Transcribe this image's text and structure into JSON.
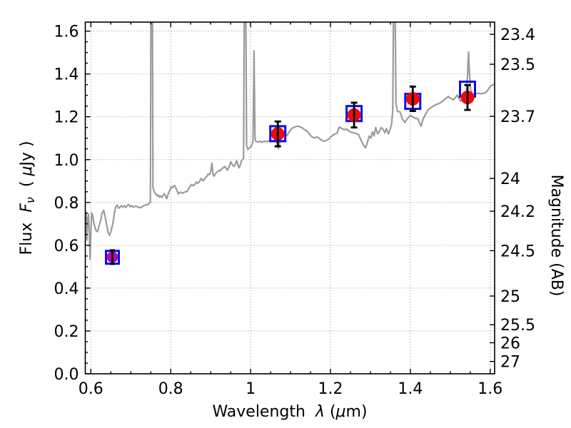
{
  "chart_data": {
    "type": "line+scatter",
    "title": "",
    "xlabel_parts": [
      {
        "t": "Wavelength  ",
        "i": false
      },
      {
        "t": "λ",
        "i": true
      },
      {
        "t": " (",
        "i": false
      },
      {
        "t": "μ",
        "i": true
      },
      {
        "t": "m)",
        "i": false
      }
    ],
    "ylabel_left_parts": [
      {
        "t": "Flux  ",
        "i": false
      },
      {
        "t": "F",
        "i": true
      },
      {
        "t": "ν",
        "i": true,
        "s": true
      },
      {
        "t": "  ( ",
        "i": false
      },
      {
        "t": "μ",
        "i": true
      },
      {
        "t": "Jy )",
        "i": false
      }
    ],
    "ylabel_right": "Magnitude (AB)",
    "x_axis": {
      "lim": [
        0.586,
        1.611
      ],
      "major_ticks": [
        {
          "value": 0.6,
          "label": "0.6"
        },
        {
          "value": 0.8,
          "label": "0.8"
        },
        {
          "value": 1.0,
          "label": "1"
        },
        {
          "value": 1.2,
          "label": "1.2"
        },
        {
          "value": 1.4,
          "label": "1.4"
        },
        {
          "value": 1.6,
          "label": "1.6"
        }
      ],
      "minor_step": 0.05
    },
    "y_axis_left": {
      "lim": [
        0.0,
        1.642
      ],
      "major_ticks": [
        {
          "value": 0.0,
          "label": "0.0"
        },
        {
          "value": 0.2,
          "label": "0.2"
        },
        {
          "value": 0.4,
          "label": "0.4"
        },
        {
          "value": 0.6,
          "label": "0.6"
        },
        {
          "value": 0.8,
          "label": "0.8"
        },
        {
          "value": 1.0,
          "label": "1.0"
        },
        {
          "value": 1.2,
          "label": "1.2"
        },
        {
          "value": 1.4,
          "label": "1.4"
        },
        {
          "value": 1.6,
          "label": "1.6"
        }
      ],
      "minor_step": 0.05
    },
    "y_axis_right": {
      "zero_point_note": "AB magnitude axis, m = 23.9 - 2.5 log10(F/uJy)",
      "ticks": [
        {
          "label": "23.4",
          "flux": 1.585
        },
        {
          "label": "23.5",
          "flux": 1.445
        },
        {
          "label": "23.7",
          "flux": 1.202
        },
        {
          "label": "24",
          "flux": 0.912
        },
        {
          "label": "24.2",
          "flux": 0.759
        },
        {
          "label": "24.5",
          "flux": 0.575
        },
        {
          "label": "25",
          "flux": 0.363
        },
        {
          "label": "25.5",
          "flux": 0.229
        },
        {
          "label": "26",
          "flux": 0.145
        },
        {
          "label": "27",
          "flux": 0.0575
        }
      ]
    },
    "grid": {
      "on": true,
      "style": "dotted"
    },
    "colors": {
      "background": "#ffffff",
      "frame": "#000000",
      "grid": "#8c8c8c",
      "spectrum": "#9b9b9b",
      "square": "#0b0bee",
      "circle_red": "#f20a0a",
      "circle_magenta": "#b40ab4",
      "error_bar": "#000000"
    },
    "spectrum_points": [
      [
        0.586,
        0.7
      ],
      [
        0.5875,
        0.755
      ],
      [
        0.589,
        0.73
      ],
      [
        0.59,
        0.624
      ],
      [
        0.5915,
        0.7
      ],
      [
        0.594,
        0.746
      ],
      [
        0.596,
        0.66
      ],
      [
        0.598,
        0.535
      ],
      [
        0.6,
        0.66
      ],
      [
        0.602,
        0.751
      ],
      [
        0.605,
        0.735
      ],
      [
        0.608,
        0.7
      ],
      [
        0.612,
        0.672
      ],
      [
        0.617,
        0.663
      ],
      [
        0.621,
        0.695
      ],
      [
        0.625,
        0.72
      ],
      [
        0.628,
        0.75
      ],
      [
        0.632,
        0.763
      ],
      [
        0.636,
        0.73
      ],
      [
        0.639,
        0.7
      ],
      [
        0.643,
        0.66
      ],
      [
        0.647,
        0.646
      ],
      [
        0.651,
        0.67
      ],
      [
        0.655,
        0.7
      ],
      [
        0.659,
        0.75
      ],
      [
        0.662,
        0.779
      ],
      [
        0.666,
        0.788
      ],
      [
        0.669,
        0.773
      ],
      [
        0.673,
        0.778
      ],
      [
        0.676,
        0.785
      ],
      [
        0.68,
        0.778
      ],
      [
        0.684,
        0.785
      ],
      [
        0.688,
        0.776
      ],
      [
        0.691,
        0.786
      ],
      [
        0.695,
        0.79
      ],
      [
        0.698,
        0.78
      ],
      [
        0.702,
        0.785
      ],
      [
        0.706,
        0.778
      ],
      [
        0.712,
        0.783
      ],
      [
        0.718,
        0.778
      ],
      [
        0.724,
        0.775
      ],
      [
        0.73,
        0.782
      ],
      [
        0.736,
        0.788
      ],
      [
        0.742,
        0.79
      ],
      [
        0.746,
        0.795
      ],
      [
        0.749,
        0.802
      ],
      [
        0.7505,
        1.75
      ],
      [
        0.754,
        1.75
      ],
      [
        0.7555,
        0.87
      ],
      [
        0.758,
        0.855
      ],
      [
        0.76,
        0.845
      ],
      [
        0.763,
        0.838
      ],
      [
        0.766,
        0.83
      ],
      [
        0.769,
        0.835
      ],
      [
        0.772,
        0.825
      ],
      [
        0.775,
        0.83
      ],
      [
        0.778,
        0.823
      ],
      [
        0.781,
        0.835
      ],
      [
        0.784,
        0.84
      ],
      [
        0.787,
        0.83
      ],
      [
        0.79,
        0.818
      ],
      [
        0.793,
        0.836
      ],
      [
        0.796,
        0.85
      ],
      [
        0.799,
        0.865
      ],
      [
        0.801,
        0.873
      ],
      [
        0.804,
        0.868
      ],
      [
        0.807,
        0.877
      ],
      [
        0.81,
        0.879
      ],
      [
        0.8125,
        0.868
      ],
      [
        0.815,
        0.858
      ],
      [
        0.819,
        0.84
      ],
      [
        0.822,
        0.846
      ],
      [
        0.825,
        0.848
      ],
      [
        0.829,
        0.843
      ],
      [
        0.832,
        0.845
      ],
      [
        0.836,
        0.85
      ],
      [
        0.841,
        0.851
      ],
      [
        0.846,
        0.868
      ],
      [
        0.852,
        0.884
      ],
      [
        0.857,
        0.878
      ],
      [
        0.862,
        0.888
      ],
      [
        0.864,
        0.895
      ],
      [
        0.868,
        0.89
      ],
      [
        0.872,
        0.898
      ],
      [
        0.876,
        0.912
      ],
      [
        0.879,
        0.905
      ],
      [
        0.882,
        0.901
      ],
      [
        0.886,
        0.915
      ],
      [
        0.89,
        0.92
      ],
      [
        0.894,
        0.934
      ],
      [
        0.897,
        0.93
      ],
      [
        0.9,
        0.945
      ],
      [
        0.903,
        0.984
      ],
      [
        0.906,
        0.928
      ],
      [
        0.909,
        0.923
      ],
      [
        0.912,
        0.935
      ],
      [
        0.915,
        0.94
      ],
      [
        0.918,
        0.945
      ],
      [
        0.921,
        0.95
      ],
      [
        0.924,
        0.947
      ],
      [
        0.927,
        0.956
      ],
      [
        0.93,
        0.96
      ],
      [
        0.933,
        0.965
      ],
      [
        0.936,
        0.968
      ],
      [
        0.939,
        0.958
      ],
      [
        0.942,
        0.951
      ],
      [
        0.945,
        0.962
      ],
      [
        0.948,
        0.975
      ],
      [
        0.95,
        0.99
      ],
      [
        0.953,
        0.98
      ],
      [
        0.956,
        0.972
      ],
      [
        0.959,
        0.968
      ],
      [
        0.962,
        0.98
      ],
      [
        0.965,
        0.995
      ],
      [
        0.968,
        0.978
      ],
      [
        0.971,
        0.962
      ],
      [
        0.974,
        0.975
      ],
      [
        0.977,
        0.995
      ],
      [
        0.98,
        1.0
      ],
      [
        0.9825,
        1.005
      ],
      [
        0.9842,
        1.75
      ],
      [
        0.988,
        1.75
      ],
      [
        0.99,
        1.065
      ],
      [
        0.993,
        1.048
      ],
      [
        0.996,
        1.052
      ],
      [
        1.0,
        1.058
      ],
      [
        1.004,
        1.072
      ],
      [
        1.006,
        1.09
      ],
      [
        1.0085,
        1.508
      ],
      [
        1.011,
        1.1
      ],
      [
        1.013,
        1.085
      ],
      [
        1.016,
        1.084
      ],
      [
        1.02,
        1.082
      ],
      [
        1.024,
        1.086
      ],
      [
        1.028,
        1.08
      ],
      [
        1.032,
        1.084
      ],
      [
        1.036,
        1.086
      ],
      [
        1.04,
        1.083
      ],
      [
        1.044,
        1.087
      ],
      [
        1.048,
        1.085
      ],
      [
        1.052,
        1.088
      ],
      [
        1.056,
        1.086
      ],
      [
        1.06,
        1.09
      ],
      [
        1.064,
        1.088
      ],
      [
        1.068,
        1.073
      ],
      [
        1.0695,
        1.051
      ],
      [
        1.072,
        1.075
      ],
      [
        1.076,
        1.1
      ],
      [
        1.08,
        1.118
      ],
      [
        1.085,
        1.128
      ],
      [
        1.088,
        1.117
      ],
      [
        1.091,
        1.112
      ],
      [
        1.095,
        1.125
      ],
      [
        1.1,
        1.138
      ],
      [
        1.105,
        1.148
      ],
      [
        1.11,
        1.151
      ],
      [
        1.115,
        1.155
      ],
      [
        1.12,
        1.156
      ],
      [
        1.125,
        1.152
      ],
      [
        1.13,
        1.147
      ],
      [
        1.135,
        1.139
      ],
      [
        1.14,
        1.134
      ],
      [
        1.145,
        1.125
      ],
      [
        1.15,
        1.112
      ],
      [
        1.155,
        1.105
      ],
      [
        1.16,
        1.101
      ],
      [
        1.165,
        1.106
      ],
      [
        1.17,
        1.101
      ],
      [
        1.175,
        1.095
      ],
      [
        1.18,
        1.088
      ],
      [
        1.185,
        1.086
      ],
      [
        1.19,
        1.09
      ],
      [
        1.195,
        1.095
      ],
      [
        1.2,
        1.105
      ],
      [
        1.205,
        1.112
      ],
      [
        1.21,
        1.118
      ],
      [
        1.216,
        1.123
      ],
      [
        1.222,
        1.152
      ],
      [
        1.228,
        1.146
      ],
      [
        1.234,
        1.139
      ],
      [
        1.24,
        1.143
      ],
      [
        1.246,
        1.134
      ],
      [
        1.252,
        1.128
      ],
      [
        1.258,
        1.125
      ],
      [
        1.264,
        1.122
      ],
      [
        1.27,
        1.118
      ],
      [
        1.276,
        1.092
      ],
      [
        1.282,
        1.069
      ],
      [
        1.288,
        1.055
      ],
      [
        1.293,
        1.085
      ],
      [
        1.297,
        1.11
      ],
      [
        1.301,
        1.1
      ],
      [
        1.305,
        1.13
      ],
      [
        1.309,
        1.11
      ],
      [
        1.313,
        1.15
      ],
      [
        1.318,
        1.12
      ],
      [
        1.322,
        1.13
      ],
      [
        1.327,
        1.15
      ],
      [
        1.332,
        1.14
      ],
      [
        1.336,
        1.125
      ],
      [
        1.34,
        1.145
      ],
      [
        1.345,
        1.12
      ],
      [
        1.349,
        1.14
      ],
      [
        1.353,
        1.165
      ],
      [
        1.356,
        1.23
      ],
      [
        1.358,
        1.75
      ],
      [
        1.3615,
        1.75
      ],
      [
        1.364,
        1.26
      ],
      [
        1.368,
        1.225
      ],
      [
        1.374,
        1.223
      ],
      [
        1.38,
        1.19
      ],
      [
        1.386,
        1.173
      ],
      [
        1.392,
        1.19
      ],
      [
        1.4,
        1.206
      ],
      [
        1.408,
        1.197
      ],
      [
        1.414,
        1.192
      ],
      [
        1.419,
        1.19
      ],
      [
        1.423,
        1.172
      ],
      [
        1.427,
        1.156
      ],
      [
        1.432,
        1.19
      ],
      [
        1.438,
        1.212
      ],
      [
        1.445,
        1.234
      ],
      [
        1.452,
        1.243
      ],
      [
        1.458,
        1.25
      ],
      [
        1.463,
        1.256
      ],
      [
        1.472,
        1.262
      ],
      [
        1.481,
        1.273
      ],
      [
        1.488,
        1.285
      ],
      [
        1.495,
        1.295
      ],
      [
        1.502,
        1.285
      ],
      [
        1.508,
        1.279
      ],
      [
        1.513,
        1.29
      ],
      [
        1.517,
        1.301
      ],
      [
        1.522,
        1.285
      ],
      [
        1.526,
        1.273
      ],
      [
        1.53,
        1.28
      ],
      [
        1.535,
        1.29
      ],
      [
        1.54,
        1.302
      ],
      [
        1.5432,
        1.4
      ],
      [
        1.5455,
        1.502
      ],
      [
        1.548,
        1.4
      ],
      [
        1.551,
        1.325
      ],
      [
        1.555,
        1.306
      ],
      [
        1.56,
        1.307
      ],
      [
        1.565,
        1.308
      ],
      [
        1.57,
        1.31
      ],
      [
        1.576,
        1.308
      ],
      [
        1.582,
        1.309
      ],
      [
        1.588,
        1.312
      ],
      [
        1.594,
        1.325
      ],
      [
        1.601,
        1.345
      ],
      [
        1.606,
        1.349
      ],
      [
        1.611,
        1.352
      ]
    ],
    "photometry": {
      "model_squares": [
        {
          "x": 0.654,
          "y": 0.544,
          "size": 18
        },
        {
          "x": 1.068,
          "y": 1.121,
          "size": 21
        },
        {
          "x": 1.259,
          "y": 1.215,
          "size": 21
        },
        {
          "x": 1.406,
          "y": 1.272,
          "size": 21
        },
        {
          "x": 1.543,
          "y": 1.329,
          "size": 21
        }
      ],
      "observed_points": [
        {
          "x": 0.654,
          "y": 0.545,
          "err": 0.032,
          "r": 8,
          "cap": 7,
          "color_key": "circle_magenta"
        },
        {
          "x": 1.068,
          "y": 1.12,
          "err": 0.058,
          "r": 9.5,
          "cap": 9,
          "color_key": "circle_red"
        },
        {
          "x": 1.259,
          "y": 1.208,
          "err": 0.058,
          "r": 9.5,
          "cap": 9,
          "color_key": "circle_red"
        },
        {
          "x": 1.406,
          "y": 1.284,
          "err": 0.057,
          "r": 9.5,
          "cap": 9,
          "color_key": "circle_red"
        },
        {
          "x": 1.543,
          "y": 1.29,
          "err": 0.058,
          "r": 9.5,
          "cap": 9,
          "color_key": "circle_red"
        }
      ]
    }
  }
}
